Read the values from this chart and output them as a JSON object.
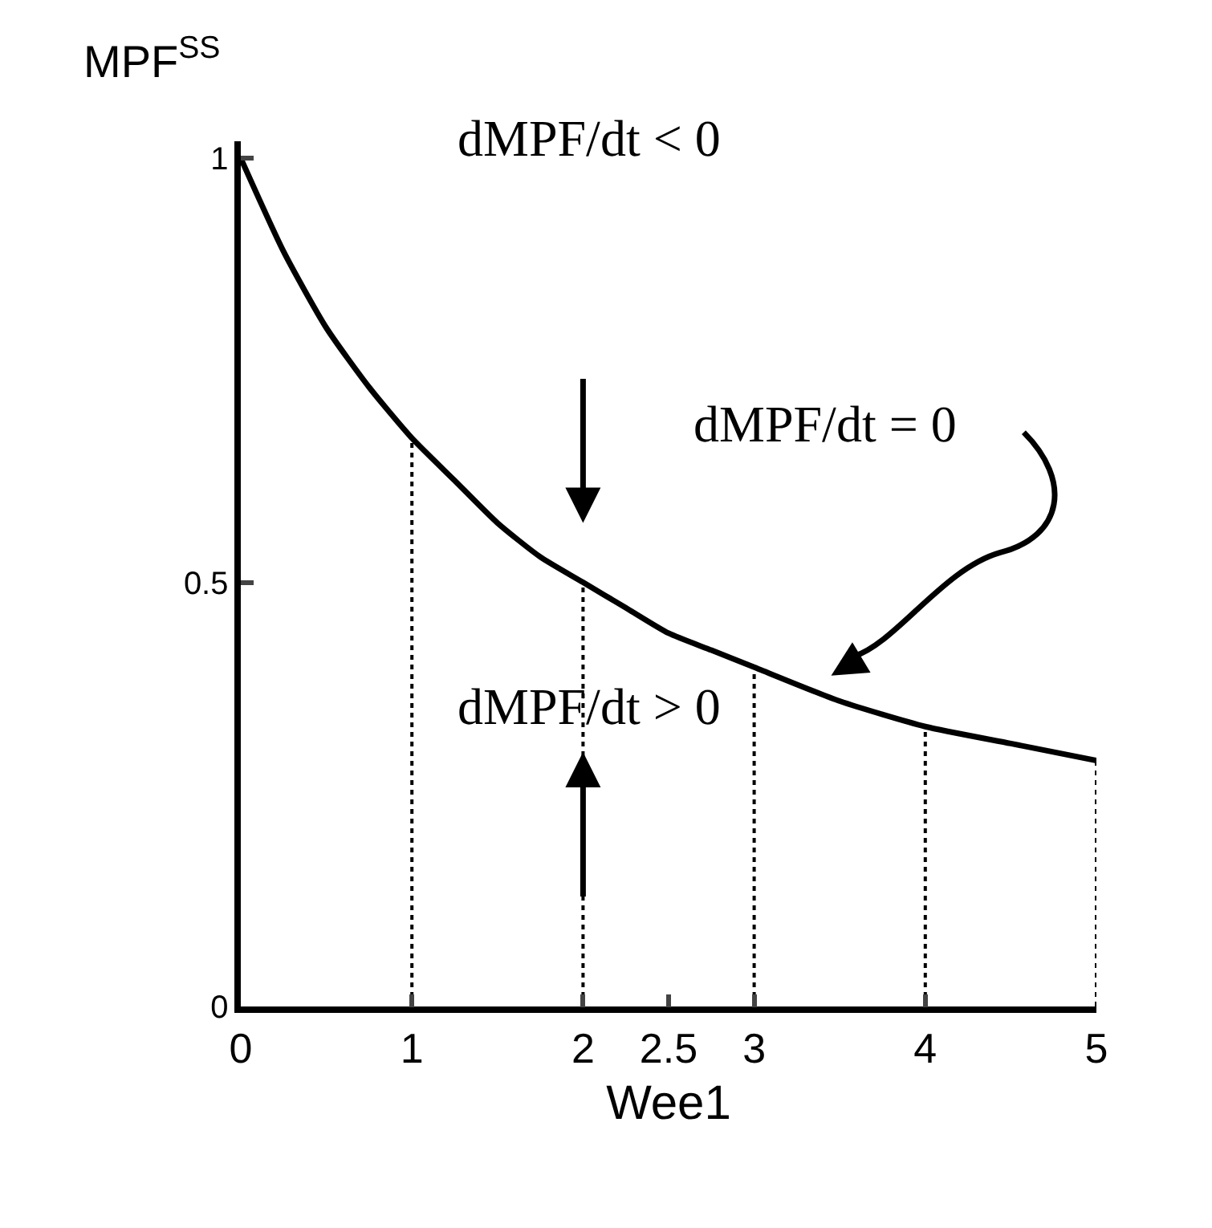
{
  "chart_data": {
    "type": "line",
    "xlabel": "Wee1",
    "ylabel": "MPF$^{SS}$",
    "xlim": [
      0,
      5
    ],
    "ylim": [
      0,
      1.02
    ],
    "xticks": [
      0,
      1,
      2,
      2.5,
      3,
      4,
      5
    ],
    "yticks": [
      0,
      0.5,
      1
    ],
    "grid": false,
    "marker": "none",
    "series": [
      {
        "color": "#000000",
        "x": [
          0,
          0.25,
          0.5,
          0.75,
          1,
          1.25,
          1.5,
          1.75,
          2,
          2.25,
          2.5,
          2.75,
          3,
          3.5,
          4,
          4.5,
          5
        ],
        "values": [
          1,
          0.89,
          0.8,
          0.73,
          0.67,
          0.62,
          0.57,
          0.53,
          0.5,
          0.47,
          0.44,
          0.42,
          0.4,
          0.36,
          0.33,
          0.31,
          0.29
        ]
      },
      {
        "color": "#000000",
        "line_style": "dotted",
        "x": [
          1,
          1
        ],
        "values": [
          0,
          0.67
        ]
      },
      {
        "color": "#000000",
        "line_style": "dotted",
        "x": [
          2,
          2
        ],
        "values": [
          0,
          0.5
        ]
      },
      {
        "color": "#000000",
        "line_style": "dotted",
        "x": [
          3,
          3
        ],
        "values": [
          0,
          0.4
        ]
      },
      {
        "color": "#000000",
        "line_style": "dotted",
        "x": [
          4,
          4
        ],
        "values": [
          0,
          0.33
        ]
      },
      {
        "color": "#000000",
        "line_style": "dotted",
        "x": [
          5,
          5
        ],
        "values": [
          0,
          0.29
        ]
      }
    ],
    "annotations": [
      "dMPF/dt < 0",
      "dMPF/dt = 0",
      {
        "text": "dMPF/dt > 0",
        "x": 2,
        "y": 0.3
      }
    ]
  }
}
